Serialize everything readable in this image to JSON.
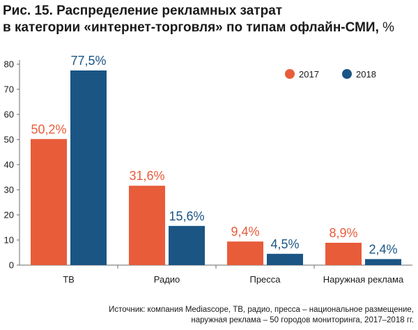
{
  "title": {
    "line1": "Рис. 15. Распределение рекламных затрат",
    "line2": "в категории «интернет-торговля» по типам офлайн-СМИ,",
    "unit": "%"
  },
  "chart_data": {
    "type": "bar",
    "categories": [
      "ТВ",
      "Радио",
      "Пресса",
      "Наружная реклама"
    ],
    "series": [
      {
        "name": "2017",
        "color": "#e85c3a",
        "values": [
          50.2,
          31.6,
          9.4,
          8.9
        ],
        "labels": [
          "50,2%",
          "31,6%",
          "9,4%",
          "8,9%"
        ]
      },
      {
        "name": "2018",
        "color": "#1b5584",
        "values": [
          77.5,
          15.6,
          4.5,
          2.4
        ],
        "labels": [
          "77,5%",
          "15,6%",
          "4,5%",
          "2,4%"
        ]
      }
    ],
    "ylim": [
      0,
      80
    ],
    "yticks": [
      "0",
      "10",
      "20",
      "30",
      "40",
      "50",
      "60",
      "70",
      "80"
    ],
    "legend": "top-right",
    "grid": false
  },
  "source": {
    "line1": "Источник: компания Mediascope, ТВ, радио, пресса – национальное размещение,",
    "line2": "наружная реклама – 50 городов мониторинга, 2017–2018 гг."
  }
}
